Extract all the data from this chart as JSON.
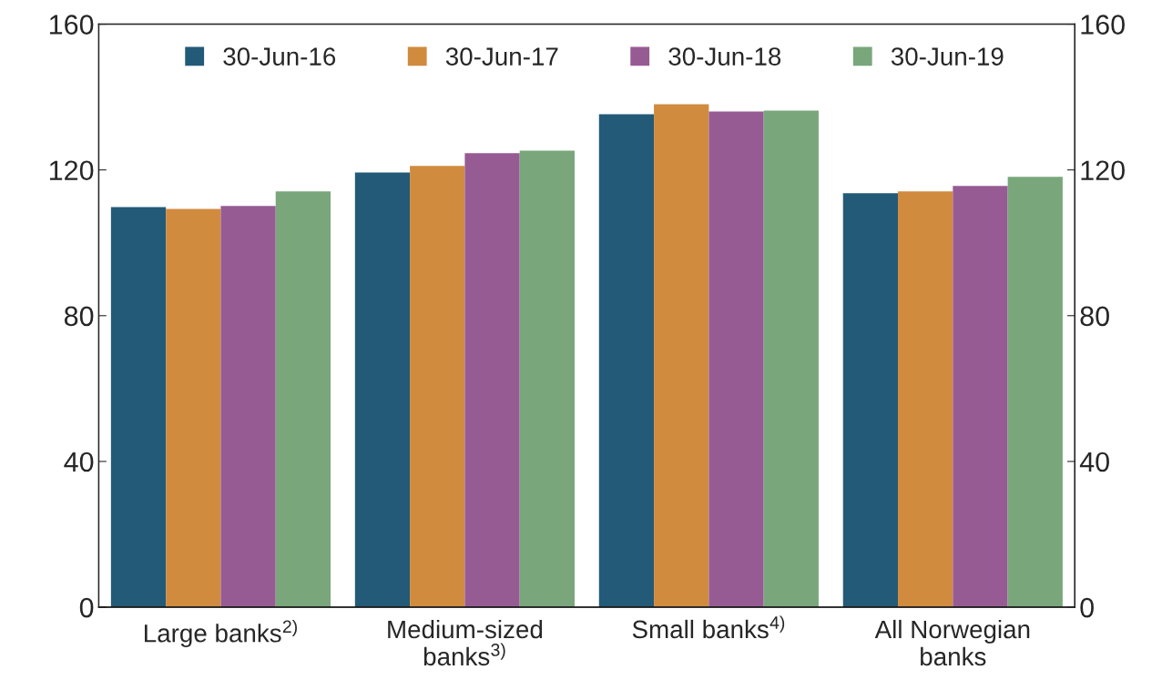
{
  "chart_data": {
    "type": "bar",
    "categories": [
      "Large banks$^{2)}$",
      "Medium-sized\nbanks$^{3)}$",
      "Small banks$^{4)}$",
      "All Norwegian\nbanks"
    ],
    "series": [
      {
        "name": "30-Jun-16",
        "color": "#235a77",
        "values": [
          109.8,
          119.3,
          135.3,
          113.6
        ]
      },
      {
        "name": "30-Jun-17",
        "color": "#d08b3f",
        "values": [
          109.3,
          121.1,
          138.0,
          114.1
        ]
      },
      {
        "name": "30-Jun-18",
        "color": "#975b94",
        "values": [
          110.1,
          124.6,
          136.0,
          115.6
        ]
      },
      {
        "name": "30-Jun-19",
        "color": "#79a77b",
        "values": [
          114.1,
          125.3,
          136.3,
          118.1
        ]
      }
    ],
    "ylim": [
      0,
      160
    ],
    "yticks": [
      0,
      40,
      80,
      120,
      160
    ],
    "y2lim": [
      0,
      160
    ],
    "y2ticks": [
      0,
      40,
      80,
      120,
      160
    ],
    "grid": false,
    "legend": "top"
  }
}
